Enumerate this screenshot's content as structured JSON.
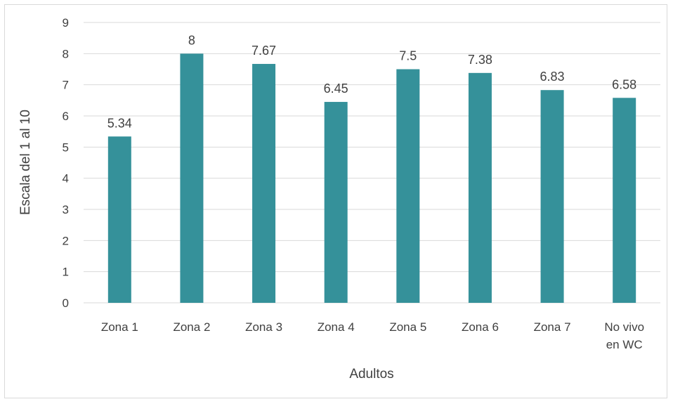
{
  "chart_data": {
    "type": "bar",
    "title": "",
    "xlabel": "Adultos",
    "ylabel": "Escala del 1 al 10",
    "ylim": [
      0,
      9
    ],
    "yticks": [
      "0",
      "1",
      "2",
      "3",
      "4",
      "5",
      "6",
      "7",
      "8",
      "9"
    ],
    "grid": true,
    "legend": "none",
    "bar_color": "#35919a",
    "gridline_color": "#d9d9d9",
    "categories": [
      [
        "Zona 1"
      ],
      [
        "Zona 2"
      ],
      [
        "Zona 3"
      ],
      [
        "Zona 4"
      ],
      [
        "Zona 5"
      ],
      [
        "Zona 6"
      ],
      [
        "Zona 7"
      ],
      [
        "No vivo",
        "en WC"
      ]
    ],
    "values": [
      5.34,
      8,
      7.67,
      6.45,
      7.5,
      7.38,
      6.83,
      6.58
    ],
    "data_labels": [
      "5.34",
      "8",
      "7.67",
      "6.45",
      "7.5",
      "7.38",
      "6.83",
      "6.58"
    ]
  }
}
